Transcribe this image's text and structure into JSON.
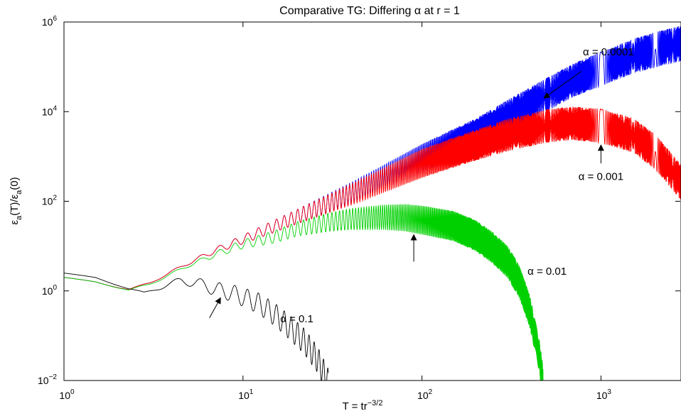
{
  "chart_data": {
    "type": "line",
    "title_prefix": "Comparative TG: Differing",
    "title_alpha": "α",
    "title_suffix": " at r = 1",
    "xlabel_main": "T = tr",
    "xlabel_exp": "−3/2",
    "ylabel_parts": [
      "ε",
      "a",
      "(T)/ε",
      "a",
      "(0)"
    ],
    "x_scale": "log",
    "y_scale": "log",
    "xlim": [
      1,
      2800
    ],
    "ylim": [
      0.01,
      1000000
    ],
    "x_ticks": [
      {
        "value": 1,
        "base": "10",
        "exp": "0"
      },
      {
        "value": 10,
        "base": "10",
        "exp": "1"
      },
      {
        "value": 100,
        "base": "10",
        "exp": "2"
      },
      {
        "value": 1000,
        "base": "10",
        "exp": "3"
      }
    ],
    "y_ticks": [
      {
        "value": 0.01,
        "base": "10",
        "exp": "−2"
      },
      {
        "value": 1,
        "base": "10",
        "exp": "0"
      },
      {
        "value": 100,
        "base": "10",
        "exp": "2"
      },
      {
        "value": 10000,
        "base": "10",
        "exp": "4"
      },
      {
        "value": 1000000,
        "base": "10",
        "exp": "6"
      }
    ],
    "grid": false,
    "series": [
      {
        "color": "#0000ff",
        "center": [
          [
            1,
            2.0
          ],
          [
            1.5,
            1.6
          ],
          [
            2.3,
            1.05
          ],
          [
            3,
            1.5
          ],
          [
            5,
            4.2
          ],
          [
            7,
            8
          ],
          [
            10,
            14
          ],
          [
            20,
            45
          ],
          [
            40,
            150
          ],
          [
            100,
            900
          ],
          [
            200,
            3200
          ],
          [
            400,
            15000
          ],
          [
            700,
            50000
          ],
          [
            1000,
            90000
          ],
          [
            1500,
            170000
          ],
          [
            2000,
            240000
          ],
          [
            2800,
            330000
          ]
        ],
        "band": [
          [
            1,
            1.0
          ],
          [
            5,
            1.08
          ],
          [
            10,
            1.25
          ],
          [
            20,
            1.45
          ],
          [
            50,
            1.8
          ],
          [
            100,
            2.1
          ],
          [
            300,
            2.3
          ],
          [
            1000,
            2.4
          ],
          [
            2800,
            2.5
          ]
        ]
      },
      {
        "color": "#ff0000",
        "center": [
          [
            1,
            2.0
          ],
          [
            1.5,
            1.6
          ],
          [
            2.3,
            1.05
          ],
          [
            3,
            1.5
          ],
          [
            5,
            4.2
          ],
          [
            7,
            8
          ],
          [
            10,
            14
          ],
          [
            20,
            45
          ],
          [
            40,
            140
          ],
          [
            100,
            700
          ],
          [
            200,
            1800
          ],
          [
            300,
            3000
          ],
          [
            500,
            4800
          ],
          [
            700,
            5500
          ],
          [
            1000,
            4800
          ],
          [
            1500,
            3000
          ],
          [
            2000,
            1300
          ],
          [
            2500,
            450
          ],
          [
            2800,
            260
          ]
        ],
        "band": [
          [
            1,
            1.0
          ],
          [
            5,
            1.08
          ],
          [
            10,
            1.25
          ],
          [
            20,
            1.45
          ],
          [
            50,
            1.8
          ],
          [
            100,
            2.1
          ],
          [
            300,
            2.3
          ],
          [
            1000,
            2.4
          ],
          [
            2800,
            2.5
          ]
        ]
      },
      {
        "color": "#00d000",
        "center": [
          [
            1,
            2.0
          ],
          [
            1.5,
            1.6
          ],
          [
            2.3,
            1.03
          ],
          [
            3,
            1.4
          ],
          [
            5,
            3.7
          ],
          [
            7,
            6.5
          ],
          [
            10,
            11
          ],
          [
            15,
            16
          ],
          [
            20,
            24
          ],
          [
            30,
            34
          ],
          [
            40,
            40
          ],
          [
            60,
            44
          ],
          [
            80,
            43
          ],
          [
            100,
            38
          ],
          [
            150,
            28
          ],
          [
            200,
            17
          ],
          [
            250,
            9
          ],
          [
            300,
            4.5
          ],
          [
            350,
            1.6
          ],
          [
            400,
            0.35
          ],
          [
            450,
            0.04
          ],
          [
            475,
            0.009
          ]
        ],
        "band": [
          [
            1,
            1.0
          ],
          [
            5,
            1.08
          ],
          [
            10,
            1.25
          ],
          [
            20,
            1.45
          ],
          [
            50,
            1.8
          ],
          [
            100,
            2.1
          ],
          [
            300,
            2.3
          ],
          [
            500,
            2.4
          ]
        ]
      },
      {
        "color": "#000000",
        "center": [
          [
            1,
            2.5
          ],
          [
            1.5,
            2.0
          ],
          [
            2.3,
            1.1
          ],
          [
            2.8,
            0.92
          ],
          [
            3.5,
            1.2
          ],
          [
            4.5,
            1.7
          ],
          [
            5.5,
            1.5
          ],
          [
            7,
            1.1
          ],
          [
            9,
            0.85
          ],
          [
            12,
            0.55
          ],
          [
            15,
            0.3
          ],
          [
            18,
            0.16
          ],
          [
            22,
            0.075
          ],
          [
            26,
            0.03
          ],
          [
            30,
            0.009
          ]
        ],
        "band": [
          [
            1,
            1.0
          ],
          [
            3,
            1.04
          ],
          [
            5,
            1.25
          ],
          [
            8,
            1.5
          ],
          [
            12,
            1.7
          ],
          [
            20,
            1.9
          ],
          [
            30,
            2.0
          ]
        ]
      }
    ],
    "annotations": [
      {
        "text": "α = 0.0001",
        "text_x": 1100,
        "text_y": 180000,
        "arrow_from": [
          780,
          80000
        ],
        "arrow_to": [
          480,
          20000
        ]
      },
      {
        "text": "α = 0.001",
        "text_x": 1000,
        "text_y": 300,
        "arrow_from": [
          1000,
          700
        ],
        "arrow_to": [
          1000,
          1800
        ]
      },
      {
        "text": "α = 0.01",
        "text_x": 500,
        "text_y": 2.3,
        "arrow_from": [
          90,
          4.5
        ],
        "arrow_to": [
          90,
          18
        ]
      },
      {
        "text": "α = 0.1",
        "text_x": 20,
        "text_y": 0.2,
        "arrow_from": [
          6.5,
          0.25
        ],
        "arrow_to": [
          7.5,
          0.7
        ]
      }
    ]
  }
}
